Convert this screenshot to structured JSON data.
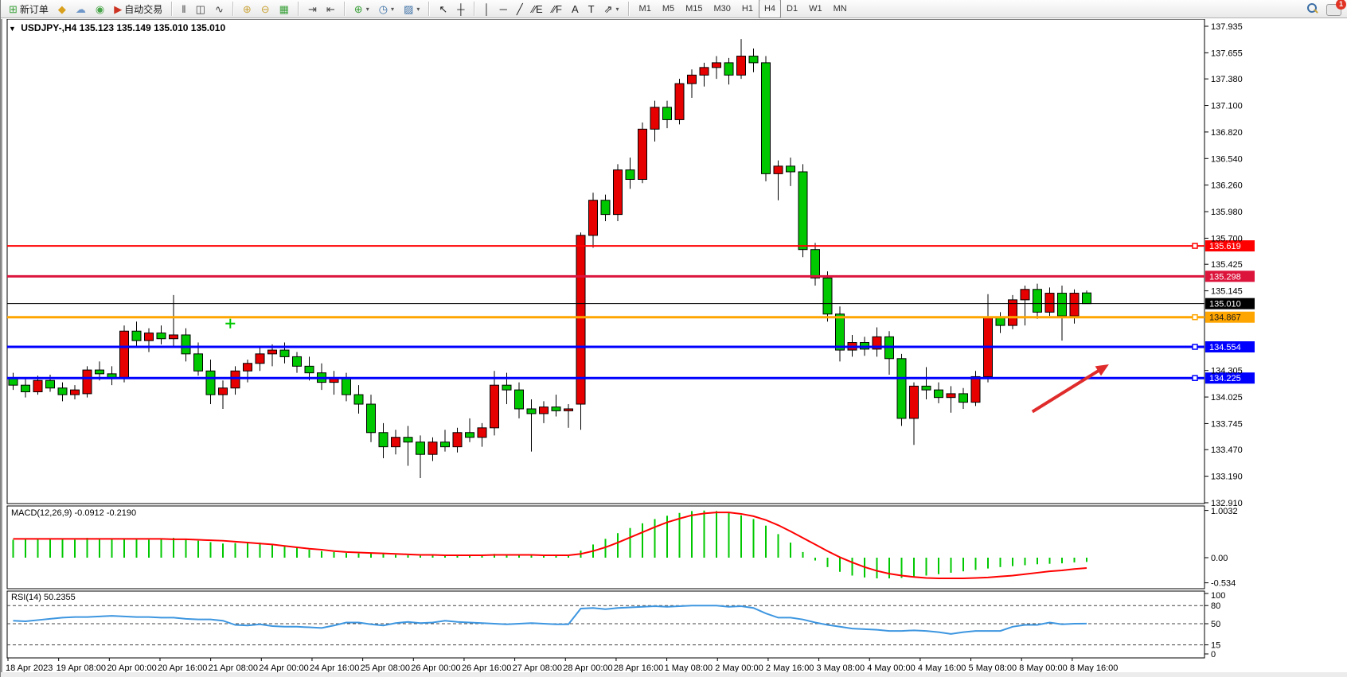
{
  "toolbar": {
    "new_order_label": "新订单",
    "autotrade_label": "自动交易",
    "notification_count": "1",
    "groups": [
      {
        "name": "trade",
        "items": [
          {
            "name": "new-order-button",
            "glyph": "⊞",
            "color": "#3aa13a",
            "label": "新订单"
          },
          {
            "name": "depth-of-market-button",
            "glyph": "◆",
            "color": "#d8a01d"
          },
          {
            "name": "community-button",
            "glyph": "☁",
            "color": "#6f97c9"
          },
          {
            "name": "signals-button",
            "glyph": "◉",
            "color": "#4aa64a"
          },
          {
            "name": "autotrading-button",
            "glyph": "▶",
            "color": "#cc3322",
            "label": "自动交易"
          }
        ]
      },
      {
        "name": "chart-type",
        "items": [
          {
            "name": "bar-chart-button",
            "glyph": "‖",
            "color": "#444"
          },
          {
            "name": "candlestick-chart-button",
            "glyph": "◫",
            "color": "#444"
          },
          {
            "name": "line-chart-button",
            "glyph": "∿",
            "color": "#444"
          }
        ]
      },
      {
        "name": "zoom",
        "items": [
          {
            "name": "zoom-in-button",
            "glyph": "⊕",
            "color": "#caa53d"
          },
          {
            "name": "zoom-out-button",
            "glyph": "⊖",
            "color": "#caa53d"
          },
          {
            "name": "tile-windows-button",
            "glyph": "▦",
            "color": "#3aa13a"
          }
        ]
      },
      {
        "name": "shift",
        "items": [
          {
            "name": "chart-shift-button",
            "glyph": "⇥",
            "color": "#444"
          },
          {
            "name": "auto-scroll-button",
            "glyph": "⇤",
            "color": "#444"
          }
        ]
      },
      {
        "name": "insert",
        "items": [
          {
            "name": "indicators-button",
            "glyph": "⊕",
            "color": "#3aa13a",
            "caret": true
          },
          {
            "name": "periods-button",
            "glyph": "◷",
            "color": "#3a6ea5",
            "caret": true
          },
          {
            "name": "templates-button",
            "glyph": "▨",
            "color": "#3a6ea5",
            "caret": true
          }
        ]
      },
      {
        "name": "cursor",
        "items": [
          {
            "name": "cursor-button",
            "glyph": "↖",
            "color": "#222"
          },
          {
            "name": "crosshair-button",
            "glyph": "┼",
            "color": "#222"
          }
        ]
      },
      {
        "name": "draw",
        "items": [
          {
            "name": "vertical-line-button",
            "glyph": "│",
            "color": "#222"
          },
          {
            "name": "horizontal-line-button",
            "glyph": "─",
            "color": "#222"
          },
          {
            "name": "trendline-button",
            "glyph": "╱",
            "color": "#222"
          },
          {
            "name": "equidistant-channel-button",
            "glyph": "∕∕E",
            "color": "#222"
          },
          {
            "name": "fibonacci-button",
            "glyph": "∕∕F",
            "color": "#222"
          },
          {
            "name": "text-button",
            "glyph": "A",
            "color": "#222"
          },
          {
            "name": "text-label-button",
            "glyph": "T",
            "color": "#222"
          },
          {
            "name": "arrows-button",
            "glyph": "⇗",
            "color": "#222",
            "caret": true
          }
        ]
      }
    ],
    "timeframes": [
      "M1",
      "M5",
      "M15",
      "M30",
      "H1",
      "H4",
      "D1",
      "W1",
      "MN"
    ],
    "active_timeframe": "H4"
  },
  "chart": {
    "symbol_period": "USDJPY-,H4",
    "ohlc_line": "135.123 135.149 135.010 135.010"
  },
  "price_axis": {
    "ticks": [
      "137.935",
      "137.655",
      "137.380",
      "137.100",
      "136.820",
      "136.540",
      "136.260",
      "135.980",
      "135.700",
      "135.425",
      "135.145",
      "134.305",
      "134.025",
      "133.745",
      "133.470",
      "133.190",
      "132.910"
    ],
    "tags": [
      {
        "value": "135.619",
        "bg": "#ff0000",
        "fg": "#ffffff"
      },
      {
        "value": "135.298",
        "bg": "#dc143c",
        "fg": "#ffffff"
      },
      {
        "value": "135.010",
        "bg": "#000000",
        "fg": "#ffffff"
      },
      {
        "value": "134.867",
        "bg": "#ffa500",
        "fg": "#1a1a1a"
      },
      {
        "value": "134.554",
        "bg": "#0000ff",
        "fg": "#ffffff"
      },
      {
        "value": "134.225",
        "bg": "#0000ff",
        "fg": "#ffffff"
      }
    ]
  },
  "macd_axis": [
    "1.0032",
    "0.00",
    "-0.534"
  ],
  "rsi_axis": [
    "100",
    "80",
    "50",
    "15",
    "0"
  ],
  "chart_data": {
    "type": "candlestick",
    "symbol": "USDJPY-",
    "timeframe": "H4",
    "ohlc_display": {
      "open": "135.123",
      "high": "135.149",
      "low": "135.010",
      "close": "135.010"
    },
    "ylim": [
      132.91,
      137.935
    ],
    "bull_color": "#e60000",
    "bear_color": "#00c800",
    "candles": [
      [
        134.22,
        134.28,
        134.1,
        134.15
      ],
      [
        134.15,
        134.22,
        134.02,
        134.08
      ],
      [
        134.08,
        134.25,
        134.05,
        134.2
      ],
      [
        134.2,
        134.26,
        134.08,
        134.12
      ],
      [
        134.12,
        134.18,
        133.98,
        134.05
      ],
      [
        134.05,
        134.15,
        134.0,
        134.1
      ],
      [
        134.06,
        134.35,
        134.02,
        134.31
      ],
      [
        134.31,
        134.4,
        134.2,
        134.27
      ],
      [
        134.27,
        134.35,
        134.15,
        134.22
      ],
      [
        134.22,
        134.78,
        134.18,
        134.72
      ],
      [
        134.72,
        134.82,
        134.55,
        134.62
      ],
      [
        134.62,
        134.75,
        134.5,
        134.7
      ],
      [
        134.7,
        134.78,
        134.58,
        134.64
      ],
      [
        134.64,
        135.1,
        134.56,
        134.68
      ],
      [
        134.68,
        134.75,
        134.4,
        134.48
      ],
      [
        134.48,
        134.6,
        134.25,
        134.3
      ],
      [
        134.3,
        134.42,
        133.95,
        134.05
      ],
      [
        134.05,
        134.2,
        133.9,
        134.12
      ],
      [
        134.12,
        134.35,
        134.05,
        134.3
      ],
      [
        134.3,
        134.42,
        134.18,
        134.38
      ],
      [
        134.38,
        134.55,
        134.3,
        134.48
      ],
      [
        134.48,
        134.58,
        134.35,
        134.52
      ],
      [
        134.52,
        134.6,
        134.38,
        134.45
      ],
      [
        134.45,
        134.5,
        134.28,
        134.35
      ],
      [
        134.35,
        134.45,
        134.2,
        134.28
      ],
      [
        134.28,
        134.38,
        134.1,
        134.18
      ],
      [
        134.18,
        134.3,
        134.05,
        134.22
      ],
      [
        134.22,
        134.28,
        133.98,
        134.05
      ],
      [
        134.05,
        134.15,
        133.85,
        133.95
      ],
      [
        133.95,
        134.05,
        133.55,
        133.65
      ],
      [
        133.65,
        133.75,
        133.38,
        133.5
      ],
      [
        133.5,
        133.68,
        133.42,
        133.6
      ],
      [
        133.6,
        133.72,
        133.3,
        133.55
      ],
      [
        133.55,
        133.62,
        133.17,
        133.42
      ],
      [
        133.42,
        133.6,
        133.35,
        133.55
      ],
      [
        133.55,
        133.68,
        133.45,
        133.5
      ],
      [
        133.5,
        133.7,
        133.44,
        133.65
      ],
      [
        133.65,
        133.8,
        133.55,
        133.6
      ],
      [
        133.6,
        133.75,
        133.5,
        133.7
      ],
      [
        133.7,
        134.3,
        133.62,
        134.15
      ],
      [
        134.15,
        134.28,
        133.95,
        134.1
      ],
      [
        134.1,
        134.18,
        133.8,
        133.9
      ],
      [
        133.9,
        134.0,
        133.45,
        133.85
      ],
      [
        133.85,
        133.98,
        133.75,
        133.92
      ],
      [
        133.92,
        134.05,
        133.82,
        133.88
      ],
      [
        133.88,
        133.95,
        133.7,
        133.9
      ],
      [
        133.95,
        135.76,
        133.68,
        135.73
      ],
      [
        135.73,
        136.18,
        135.6,
        136.1
      ],
      [
        136.1,
        136.16,
        135.88,
        135.95
      ],
      [
        135.95,
        136.48,
        135.88,
        136.42
      ],
      [
        136.42,
        136.55,
        136.22,
        136.32
      ],
      [
        136.32,
        136.92,
        136.28,
        136.85
      ],
      [
        136.85,
        137.15,
        136.72,
        137.08
      ],
      [
        137.08,
        137.15,
        136.86,
        136.95
      ],
      [
        136.95,
        137.38,
        136.9,
        137.33
      ],
      [
        137.33,
        137.48,
        137.18,
        137.42
      ],
      [
        137.42,
        137.55,
        137.3,
        137.5
      ],
      [
        137.5,
        137.62,
        137.38,
        137.55
      ],
      [
        137.55,
        137.6,
        137.32,
        137.42
      ],
      [
        137.42,
        137.8,
        137.38,
        137.62
      ],
      [
        137.62,
        137.7,
        137.45,
        137.55
      ],
      [
        137.55,
        137.62,
        136.3,
        136.38
      ],
      [
        136.38,
        136.52,
        136.1,
        136.46
      ],
      [
        136.46,
        136.55,
        136.25,
        136.4
      ],
      [
        136.4,
        136.48,
        135.5,
        135.58
      ],
      [
        135.58,
        135.65,
        135.2,
        135.28
      ],
      [
        135.28,
        135.35,
        134.82,
        134.9
      ],
      [
        134.9,
        134.98,
        134.4,
        134.52
      ],
      [
        134.52,
        134.68,
        134.45,
        134.6
      ],
      [
        134.6,
        134.66,
        134.46,
        134.53
      ],
      [
        134.53,
        134.76,
        134.45,
        134.66
      ],
      [
        134.66,
        134.72,
        134.26,
        134.43
      ],
      [
        134.43,
        134.48,
        133.72,
        133.8
      ],
      [
        133.8,
        134.18,
        133.52,
        134.14
      ],
      [
        134.14,
        134.34,
        134.0,
        134.1
      ],
      [
        134.1,
        134.18,
        133.96,
        134.02
      ],
      [
        134.02,
        134.14,
        133.86,
        134.06
      ],
      [
        134.06,
        134.12,
        133.9,
        133.97
      ],
      [
        133.97,
        134.3,
        133.93,
        134.24
      ],
      [
        134.24,
        135.11,
        134.18,
        134.86
      ],
      [
        134.86,
        134.92,
        134.7,
        134.78
      ],
      [
        134.78,
        135.1,
        134.74,
        135.05
      ],
      [
        135.05,
        135.2,
        134.78,
        135.16
      ],
      [
        135.16,
        135.22,
        134.85,
        134.92
      ],
      [
        134.92,
        135.18,
        134.88,
        135.12
      ],
      [
        135.12,
        135.2,
        134.62,
        134.88
      ],
      [
        134.88,
        135.16,
        134.8,
        135.12
      ],
      [
        135.123,
        135.149,
        135.01,
        135.01
      ]
    ],
    "h_lines": [
      {
        "price": 135.619,
        "color": "#ff0000",
        "width": 2,
        "handle": true
      },
      {
        "price": 135.298,
        "color": "#dc143c",
        "width": 3,
        "handle": false
      },
      {
        "price": 135.01,
        "color": "#000000",
        "width": 1,
        "handle": false
      },
      {
        "price": 134.867,
        "color": "#ffa500",
        "width": 3,
        "handle": true
      },
      {
        "price": 134.554,
        "color": "#0000ff",
        "width": 3,
        "handle": true
      },
      {
        "price": 134.225,
        "color": "#0000ff",
        "width": 3,
        "handle": true
      }
    ],
    "arrow": {
      "t1": 82.6,
      "p1": 133.87,
      "t2": 88.8,
      "p2": 134.37,
      "color": "#e02b2b"
    },
    "cross_marker": {
      "t": 17.6,
      "p": 134.8,
      "color": "#00c800"
    },
    "macd": {
      "label": "MACD(12,26,9)",
      "values": "-0.0912 -0.2190",
      "ylim": [
        -0.534,
        1.0032
      ],
      "hist_color": "#00c800",
      "signal_color": "#ff0000",
      "histogram": [
        0.38,
        0.4,
        0.39,
        0.41,
        0.4,
        0.38,
        0.42,
        0.4,
        0.39,
        0.41,
        0.4,
        0.38,
        0.4,
        0.42,
        0.38,
        0.36,
        0.33,
        0.3,
        0.31,
        0.33,
        0.32,
        0.29,
        0.25,
        0.21,
        0.17,
        0.14,
        0.12,
        0.1,
        0.09,
        0.1,
        0.08,
        0.06,
        0.05,
        0.04,
        0.05,
        0.04,
        0.04,
        0.05,
        0.06,
        0.08,
        0.07,
        0.06,
        0.05,
        0.06,
        0.05,
        0.04,
        0.15,
        0.28,
        0.4,
        0.52,
        0.63,
        0.73,
        0.82,
        0.89,
        0.95,
        0.99,
        1.0,
        0.99,
        0.95,
        0.9,
        0.82,
        0.68,
        0.5,
        0.32,
        0.12,
        -0.06,
        -0.2,
        -0.3,
        -0.38,
        -0.42,
        -0.44,
        -0.44,
        -0.43,
        -0.41,
        -0.38,
        -0.35,
        -0.32,
        -0.29,
        -0.26,
        -0.23,
        -0.2,
        -0.18,
        -0.16,
        -0.14,
        -0.13,
        -0.12,
        -0.1,
        -0.09
      ],
      "signal": [
        0.4,
        0.4,
        0.4,
        0.4,
        0.4,
        0.4,
        0.4,
        0.4,
        0.4,
        0.4,
        0.4,
        0.4,
        0.4,
        0.39,
        0.39,
        0.38,
        0.37,
        0.36,
        0.34,
        0.32,
        0.3,
        0.28,
        0.25,
        0.22,
        0.19,
        0.17,
        0.14,
        0.12,
        0.11,
        0.1,
        0.09,
        0.08,
        0.07,
        0.06,
        0.06,
        0.05,
        0.05,
        0.05,
        0.05,
        0.06,
        0.06,
        0.06,
        0.06,
        0.05,
        0.05,
        0.05,
        0.08,
        0.14,
        0.22,
        0.32,
        0.43,
        0.54,
        0.65,
        0.75,
        0.83,
        0.9,
        0.94,
        0.96,
        0.96,
        0.93,
        0.88,
        0.8,
        0.69,
        0.56,
        0.42,
        0.28,
        0.14,
        0.01,
        -0.1,
        -0.2,
        -0.28,
        -0.34,
        -0.38,
        -0.41,
        -0.43,
        -0.44,
        -0.44,
        -0.44,
        -0.43,
        -0.42,
        -0.4,
        -0.38,
        -0.35,
        -0.32,
        -0.29,
        -0.27,
        -0.24,
        -0.22
      ]
    },
    "rsi": {
      "label": "RSI(14)",
      "value": "50.2355",
      "ylim": [
        0,
        100
      ],
      "levels": [
        80,
        50,
        15
      ],
      "color": "#3d96e0",
      "series": [
        55,
        54,
        56,
        58,
        60,
        61,
        61,
        62,
        63,
        62,
        61,
        61,
        60,
        60,
        58,
        57,
        57,
        55,
        48,
        47,
        49,
        46,
        45,
        45,
        44,
        43,
        47,
        52,
        52,
        49,
        47,
        51,
        53,
        51,
        52,
        55,
        53,
        52,
        51,
        50,
        49,
        50,
        51,
        50,
        49,
        49,
        75,
        76,
        74,
        76,
        77,
        78,
        79,
        78,
        79,
        80,
        80,
        80,
        78,
        79,
        76,
        67,
        60,
        60,
        57,
        52,
        48,
        45,
        42,
        41,
        40,
        38,
        38,
        39,
        38,
        36,
        33,
        36,
        38,
        38,
        38,
        45,
        48,
        48,
        52,
        49,
        50,
        50.24
      ],
      "grid": "dashed"
    },
    "x_labels": [
      "18 Apr 2023",
      "19 Apr 08:00",
      "20 Apr 00:00",
      "20 Apr 16:00",
      "21 Apr 08:00",
      "24 Apr 00:00",
      "24 Apr 16:00",
      "25 Apr 08:00",
      "26 Apr 00:00",
      "26 Apr 16:00",
      "27 Apr 08:00",
      "28 Apr 00:00",
      "28 Apr 16:00",
      "1 May 08:00",
      "2 May 00:00",
      "2 May 16:00",
      "3 May 08:00",
      "4 May 00:00",
      "4 May 16:00",
      "5 May 08:00",
      "8 May 00:00",
      "8 May 16:00"
    ]
  }
}
